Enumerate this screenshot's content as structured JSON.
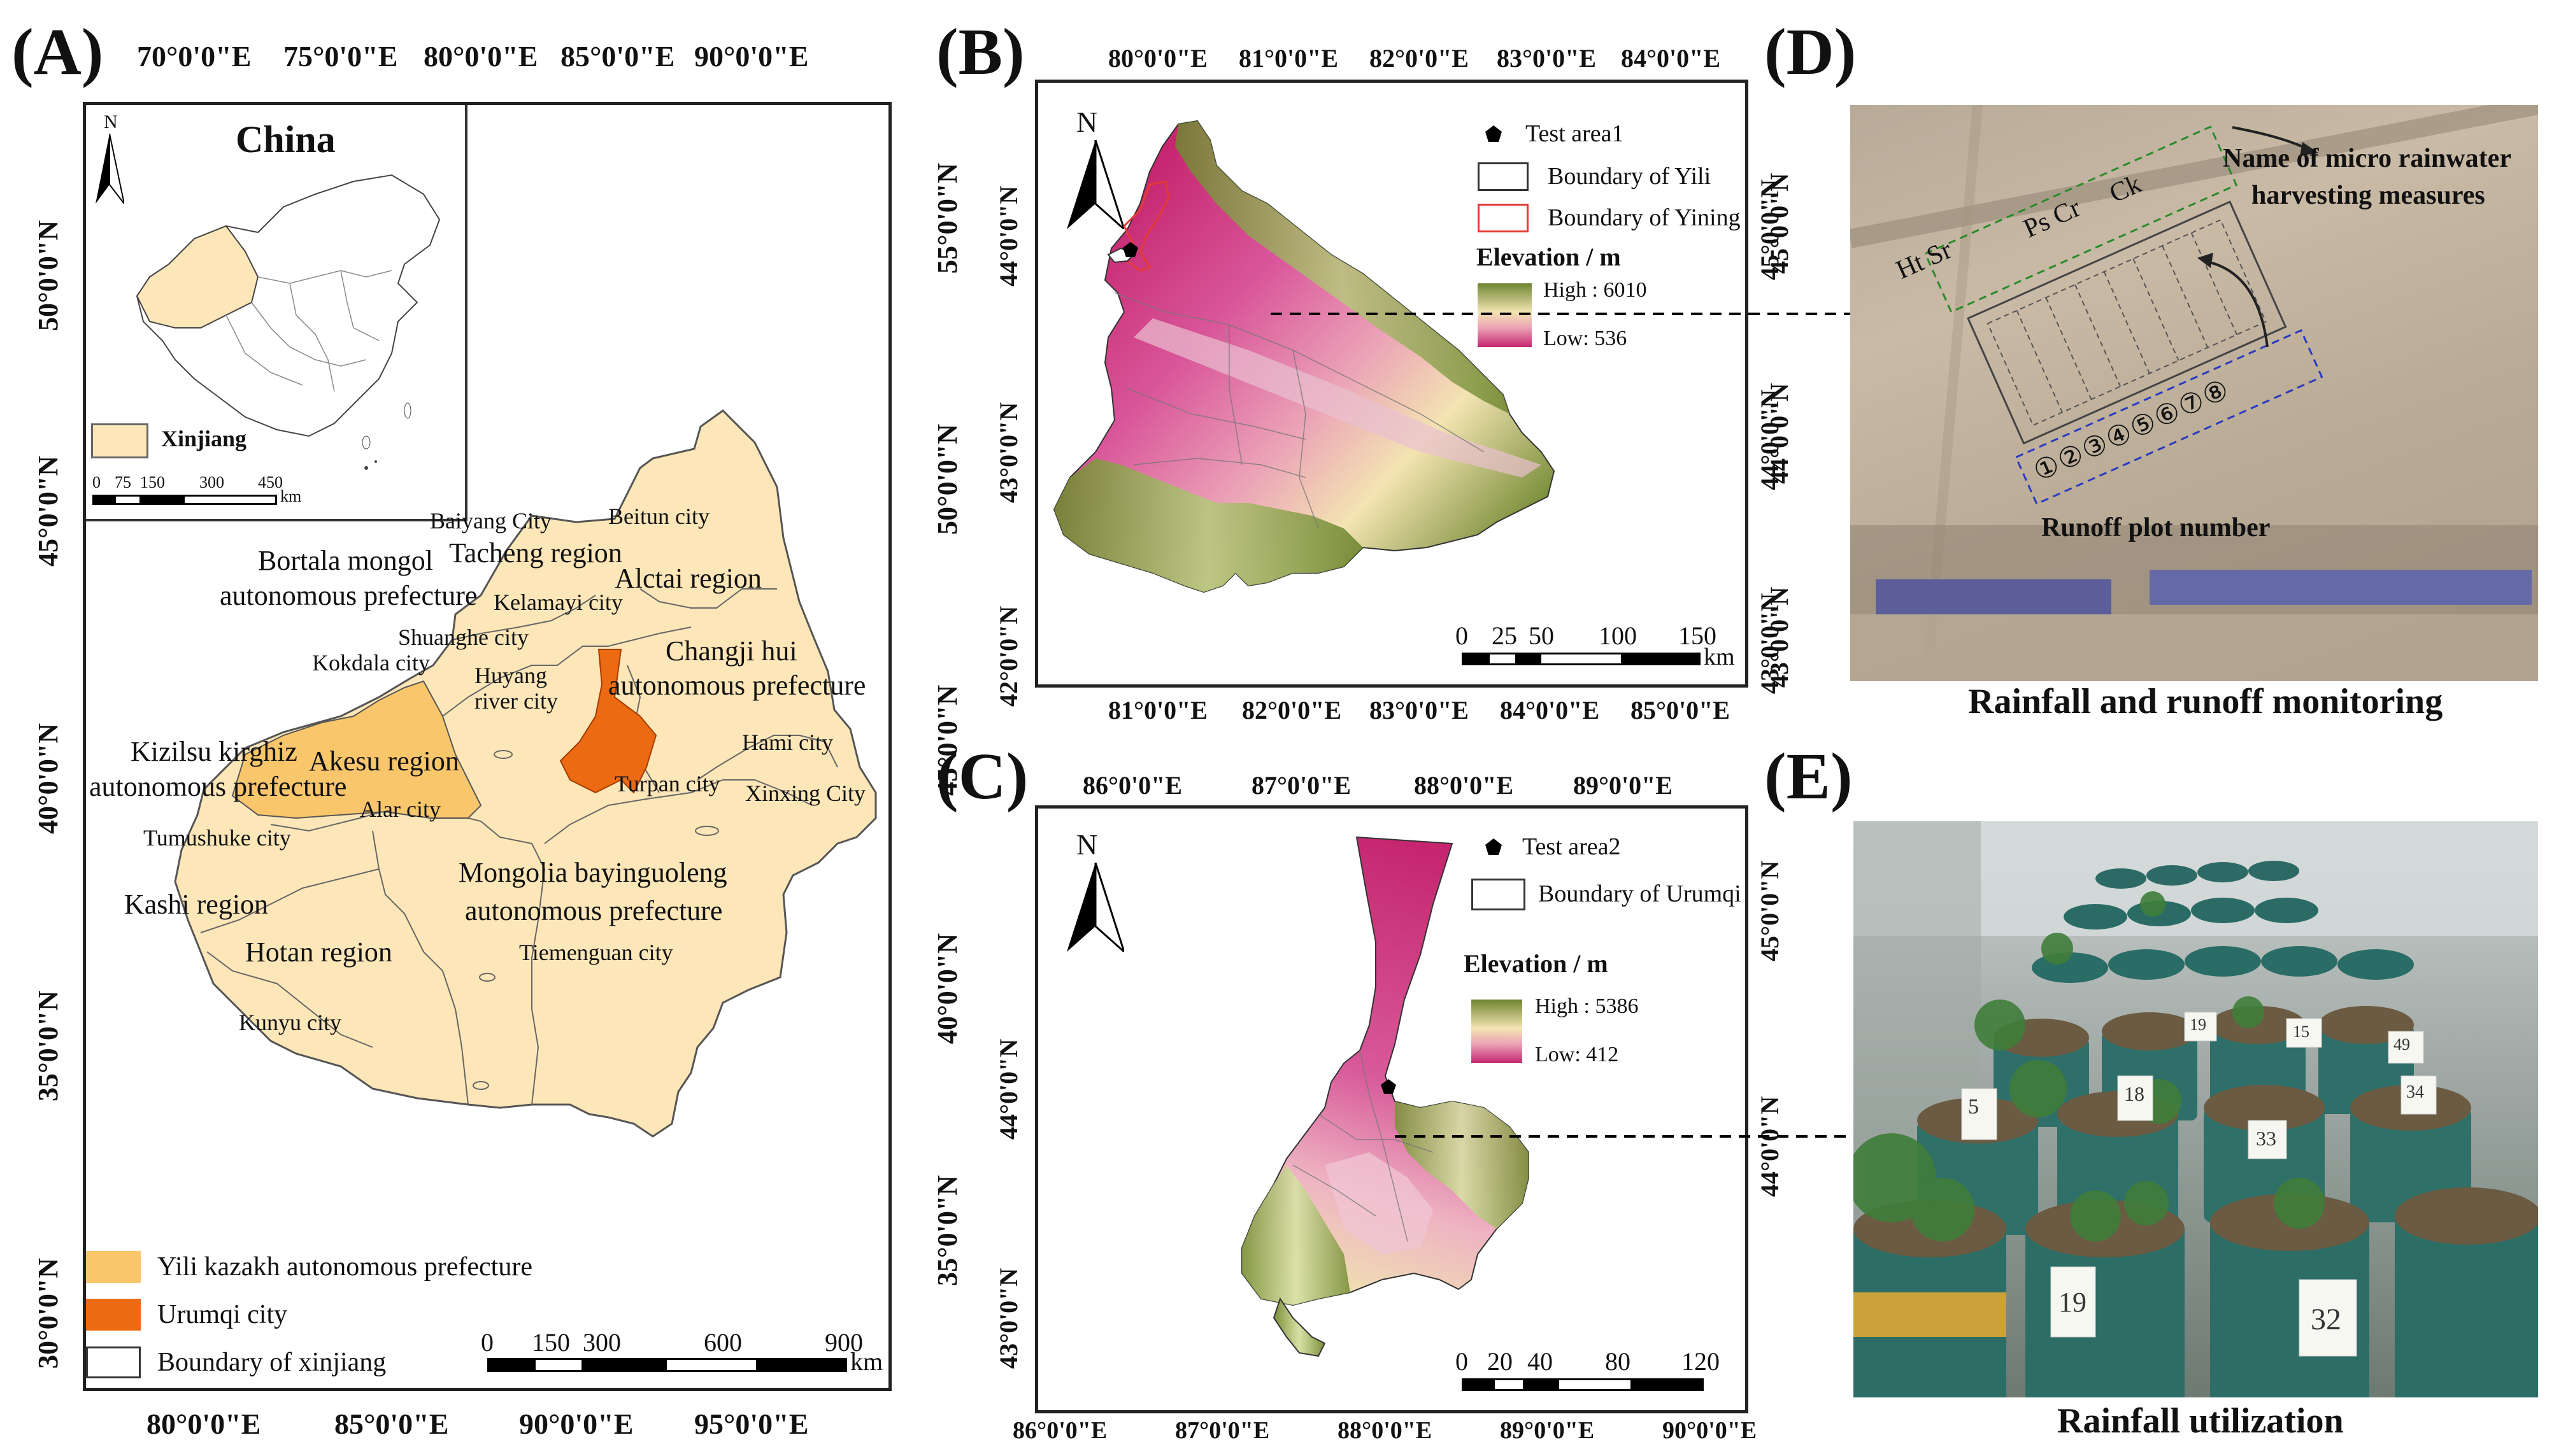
{
  "panels": {
    "a": "(A)",
    "b": "(B)",
    "c": "(C)",
    "d": "(D)",
    "e": "(E)"
  },
  "panel_a": {
    "top_lon": [
      "70°0'0\"E",
      "75°0'0\"E",
      "80°0'0\"E",
      "85°0'0\"E",
      "90°0'0\"E"
    ],
    "bottom_lon": [
      "80°0'0\"E",
      "85°0'0\"E",
      "90°0'0\"E",
      "95°0'0\"E"
    ],
    "left_lat": [
      "50°0'0\"N",
      "45°0'0\"N",
      "40°0'0\"N",
      "35°0'0\"N",
      "30°0'0\"N"
    ],
    "right_lat": [
      "55°0'0\"N",
      "50°0'0\"N",
      "45°0'0\"N",
      "40°0'0\"N",
      "35°0'0\"N"
    ],
    "inset_title": "China",
    "inset_north": "N",
    "inset_legend": "Xinjiang",
    "inset_scale": [
      "0",
      "75",
      "150",
      "300",
      "450"
    ],
    "inset_scale_unit": "km",
    "labels": {
      "baiyang": "Baiyang City",
      "beitun": "Beitun city",
      "tacheng": "Tacheng region",
      "bortala1": "Bortala mongol",
      "bortala2": "autonomous prefecture",
      "kelamayi": "Kelamayi city",
      "altai": "Alctai region",
      "shuanghe": "Shuanghe city",
      "kokdala": "Kokdala city",
      "huyang1": "Huyang",
      "huyang2": "river city",
      "changji1": "Changji hui",
      "changji2": "autonomous prefecture",
      "hami": "Hami city",
      "kizilsu1": "Kizilsu kirghiz",
      "kizilsu2": "autonomous prefecture",
      "akesu": "Akesu region",
      "alar": "Alar city",
      "turpan": "Turpan city",
      "xinxing": "Xinxing City",
      "tumushuke": "Tumushuke city",
      "kashi": "Kashi region",
      "bayin1": "Mongolia bayinguoleng",
      "bayin2": "autonomous prefecture",
      "hotan": "Hotan region",
      "tiemenguan": "Tiemenguan city",
      "kunyu": "Kunyu city"
    },
    "legend": [
      "Yili kazakh autonomous prefecture",
      "Urumqi city",
      "Boundary of xinjiang"
    ],
    "scale": [
      "0",
      "150",
      "300",
      "600",
      "900"
    ],
    "scale_unit": "km",
    "colors": {
      "xinjiang": "#fde6b8",
      "yili": "#fac66c",
      "urumqi": "#eb6a12"
    }
  },
  "panel_b": {
    "top_lon": [
      "80°0'0\"E",
      "81°0'0\"E",
      "82°0'0\"E",
      "83°0'0\"E",
      "84°0'0\"E"
    ],
    "bottom_lon": [
      "81°0'0\"E",
      "82°0'0\"E",
      "83°0'0\"E",
      "84°0'0\"E",
      "85°0'0\"E"
    ],
    "left_lat": [
      "44°0'0\"N",
      "43°0'0\"N",
      "42°0'0\"N"
    ],
    "right_lat": [
      "45°0'0\"N",
      "44°0'0\"N",
      "43°0'0\"N"
    ],
    "north": "N",
    "legend_point": "Test area1",
    "legend_boundary": "Boundary of Yili",
    "legend_city": "Boundary of Yining",
    "elev_title": "Elevation / m",
    "elev_high": "High : 6010",
    "elev_low": "Low: 536",
    "scale": [
      "0",
      "25",
      "50",
      "100",
      "150"
    ],
    "scale_unit": "km"
  },
  "panel_c": {
    "top_lon": [
      "86°0'0\"E",
      "87°0'0\"E",
      "88°0'0\"E",
      "89°0'0\"E"
    ],
    "bottom_lon": [
      "86°0'0\"E",
      "87°0'0\"E",
      "88°0'0\"E",
      "89°0'0\"E",
      "90°0'0\"E"
    ],
    "left_lat": [
      "44°0'0\"N",
      "43°0'0\"N"
    ],
    "right_lat": [
      "45°0'0\"N",
      "44°0'0\"N"
    ],
    "north": "N",
    "legend_point": "Test area2",
    "legend_boundary": "Boundary of Urumqi",
    "elev_title": "Elevation / m",
    "elev_high": "High : 5386",
    "elev_low": "Low: 412",
    "scale": [
      "0",
      "20",
      "40",
      "80",
      "120"
    ],
    "scale_unit": "km"
  },
  "panel_d": {
    "measures": [
      "Ht Sr",
      "Ps Cr",
      "Ck"
    ],
    "name_label1": "Name of micro rainwater",
    "name_label2": "harvesting measures",
    "plot_numbers": [
      "①",
      "②",
      "③",
      "④",
      "⑤",
      "⑥",
      "⑦",
      "⑧"
    ],
    "runoff_label": "Runoff plot number",
    "right_lat": [
      "45°0'0\"N",
      "44°0'0\"N",
      "43°0'0\"N"
    ],
    "caption": "Rainfall and runoff monitoring"
  },
  "panel_e": {
    "caption": "Rainfall utilization",
    "pot_tags": [
      "5",
      "18",
      "33",
      "19",
      "32",
      "34",
      "49",
      "19",
      "15"
    ]
  }
}
